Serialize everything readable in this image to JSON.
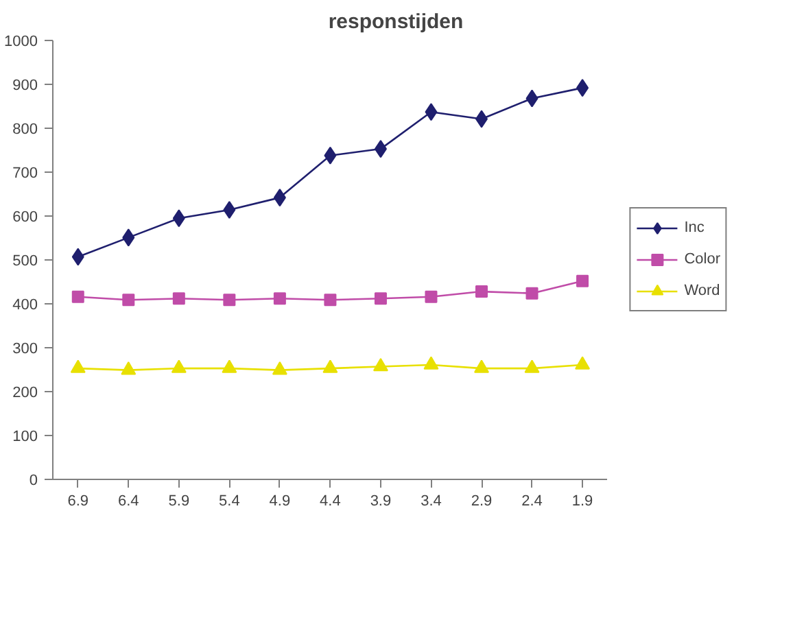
{
  "chart_data": {
    "type": "line",
    "title": "responstijden",
    "categories": [
      "6.9",
      "6.4",
      "5.9",
      "5.4",
      "4.9",
      "4.4",
      "3.9",
      "3.4",
      "2.9",
      "2.4",
      "1.9"
    ],
    "series": [
      {
        "name": "Inc",
        "color": "#1f1f6e",
        "marker": "diamond",
        "values": [
          507,
          551,
          595,
          614,
          642,
          738,
          753,
          837,
          821,
          868,
          892
        ]
      },
      {
        "name": "Color",
        "color": "#c04ca8",
        "marker": "square",
        "values": [
          416,
          409,
          412,
          409,
          412,
          409,
          412,
          416,
          428,
          424,
          452
        ]
      },
      {
        "name": "Word",
        "color": "#e8e000",
        "marker": "triangle",
        "values": [
          253,
          249,
          253,
          253,
          249,
          253,
          257,
          261,
          253,
          253,
          261
        ]
      }
    ],
    "ylim": [
      0,
      1000
    ],
    "yticks": [
      0,
      100,
      200,
      300,
      400,
      500,
      600,
      700,
      800,
      900,
      1000
    ],
    "grid": false,
    "legend": "right"
  }
}
